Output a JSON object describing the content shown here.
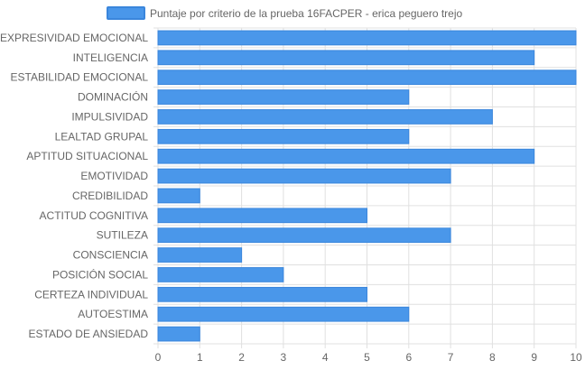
{
  "chart_data": {
    "type": "bar",
    "orientation": "horizontal",
    "categories": [
      "EXPRESIVIDAD EMOCIONAL",
      "INTELIGENCIA",
      "ESTABILIDAD EMOCIONAL",
      "DOMINACIÓN",
      "IMPULSIVIDAD",
      "LEALTAD GRUPAL",
      "APTITUD SITUACIONAL",
      "EMOTIVIDAD",
      "CREDIBILIDAD",
      "ACTITUD COGNITIVA",
      "SUTILEZA",
      "CONSCIENCIA",
      "POSICIÓN SOCIAL",
      "CERTEZA INDIVIDUAL",
      "AUTOESTIMA",
      "ESTADO DE ANSIEDAD"
    ],
    "series": [
      {
        "name": "Puntaje por criterio de la prueba 16FACPER - erica peguero trejo",
        "values": [
          10,
          9,
          10,
          6,
          8,
          6,
          9,
          7,
          1,
          5,
          7,
          2,
          3,
          5,
          6,
          1
        ]
      }
    ],
    "xlim": [
      0,
      10
    ],
    "xticks": [
      "0",
      "1",
      "2",
      "3",
      "4",
      "5",
      "6",
      "7",
      "8",
      "9",
      "10"
    ],
    "grid": true,
    "legend_position": "top",
    "colors": {
      "bar_fill": "#4a97ea",
      "bar_stroke": "#3a86dc",
      "grid": "#e0e0e0",
      "axis_text": "#666666"
    }
  }
}
